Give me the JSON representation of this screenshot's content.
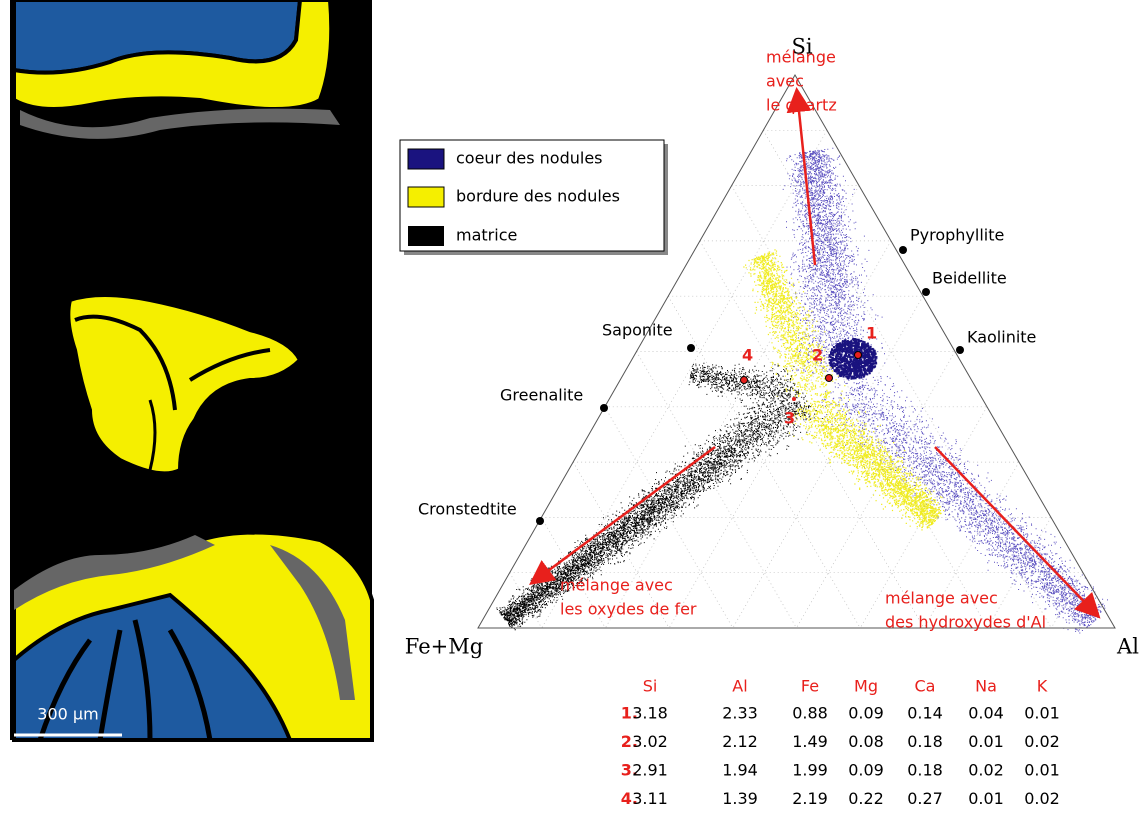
{
  "map": {
    "scale_label": "300 µm"
  },
  "legend": {
    "items": [
      "coeur des nodules",
      "bordure des nodules",
      "matrice"
    ]
  },
  "diagram": {
    "vertices": [
      "Si",
      "Fe+Mg",
      "Al"
    ],
    "minerals": [
      "Pyrophyllite",
      "Beidellite",
      "Kaolinite",
      "Saponite",
      "Greenalite",
      "Cronstedtite"
    ],
    "points": [
      "1",
      "2",
      "3",
      "4"
    ],
    "annotations": [
      [
        "mélange",
        "avec",
        "le quartz"
      ],
      [
        "mélange avec",
        "les oxydes de fer"
      ],
      [
        "mélange avec",
        "des hydroxydes d'Al"
      ]
    ]
  },
  "table": {
    "header": [
      "Si",
      "Al",
      "Fe",
      "Mg",
      "Ca",
      "Na",
      "K"
    ],
    "rows": [
      [
        "1.",
        "3.18",
        "2.33",
        "0.88",
        "0.09",
        "0.14",
        "0.04",
        "0.01"
      ],
      [
        "2.",
        "3.02",
        "2.12",
        "1.49",
        "0.08",
        "0.18",
        "0.01",
        "0.02"
      ],
      [
        "3.",
        "2.91",
        "1.94",
        "1.99",
        "0.09",
        "0.18",
        "0.02",
        "0.01"
      ],
      [
        "4.",
        "3.11",
        "1.39",
        "2.19",
        "0.22",
        "0.27",
        "0.01",
        "0.02"
      ]
    ]
  }
}
